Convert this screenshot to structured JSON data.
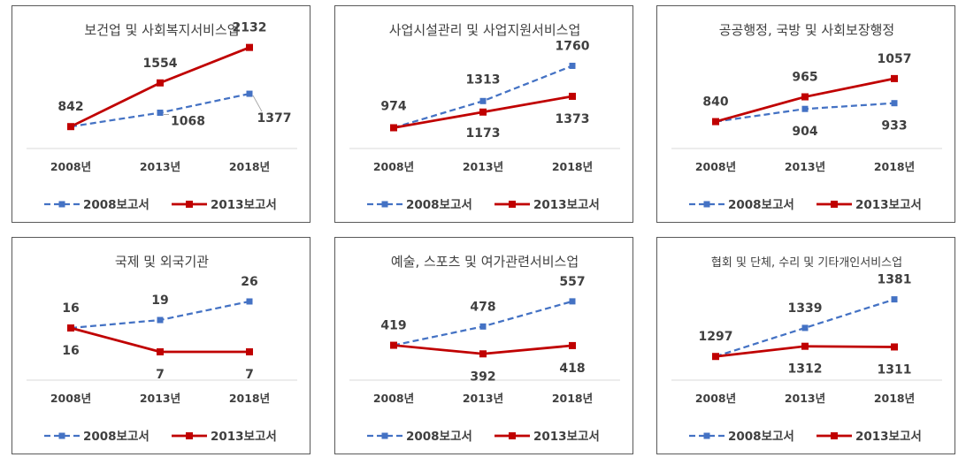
{
  "chart_data": [
    {
      "type": "line",
      "title": "보건업 및 사회복지서비스업",
      "categories": [
        "2008년",
        "2013년",
        "2018년"
      ],
      "series": [
        {
          "name": "2008보고서",
          "color": "#4472C4",
          "style": "dashed",
          "values": [
            842,
            1068,
            1377
          ]
        },
        {
          "name": "2013보고서",
          "color": "#C00000",
          "style": "solid",
          "values": [
            842,
            1554,
            2132
          ]
        }
      ],
      "point_labels": [
        "842",
        "1554",
        "2132",
        "1068",
        "1377"
      ],
      "ylim": [
        600,
        2300
      ]
    },
    {
      "type": "line",
      "title": "사업시설관리 및 사업지원서비스업",
      "categories": [
        "2008년",
        "2013년",
        "2018년"
      ],
      "series": [
        {
          "name": "2008보고서",
          "color": "#4472C4",
          "style": "dashed",
          "values": [
            974,
            1313,
            1760
          ]
        },
        {
          "name": "2013보고서",
          "color": "#C00000",
          "style": "solid",
          "values": [
            974,
            1173,
            1373
          ]
        }
      ],
      "point_labels": [
        "974",
        "1313",
        "1760",
        "1173",
        "1373"
      ],
      "ylim": [
        800,
        1900
      ]
    },
    {
      "type": "line",
      "title": "공공행정, 국방 및 사회보장행정",
      "categories": [
        "2008년",
        "2013년",
        "2018년"
      ],
      "series": [
        {
          "name": "2008보고서",
          "color": "#4472C4",
          "style": "dashed",
          "values": [
            840,
            904,
            933
          ]
        },
        {
          "name": "2013보고서",
          "color": "#C00000",
          "style": "solid",
          "values": [
            840,
            965,
            1057
          ]
        }
      ],
      "point_labels": [
        "840",
        "965",
        "1057",
        "904",
        "933"
      ],
      "ylim": [
        740,
        1110
      ]
    },
    {
      "type": "line",
      "title": "국제 및 외국기관",
      "categories": [
        "2008년",
        "2013년",
        "2018년"
      ],
      "series": [
        {
          "name": "2008보고서",
          "color": "#4472C4",
          "style": "dashed",
          "values": [
            16,
            19,
            26
          ]
        },
        {
          "name": "2013보고서",
          "color": "#C00000",
          "style": "solid",
          "values": [
            16,
            7,
            7
          ]
        }
      ],
      "point_labels": [
        "16",
        "19",
        "26",
        "16",
        "7",
        "7"
      ],
      "ylim": [
        0,
        30
      ]
    },
    {
      "type": "line",
      "title": "예술, 스포츠 및 여가관련서비스업",
      "categories": [
        "2008년",
        "2013년",
        "2018년"
      ],
      "series": [
        {
          "name": "2008보고서",
          "color": "#4472C4",
          "style": "dashed",
          "values": [
            419,
            478,
            557
          ]
        },
        {
          "name": "2013보고서",
          "color": "#C00000",
          "style": "solid",
          "values": [
            419,
            392,
            418
          ]
        }
      ],
      "point_labels": [
        "419",
        "478",
        "557",
        "392",
        "418"
      ],
      "ylim": [
        340,
        590
      ]
    },
    {
      "type": "line",
      "title": "협회 및 단체, 수리 및 기타개인서비스업",
      "categories": [
        "2008년",
        "2013년",
        "2018년"
      ],
      "series": [
        {
          "name": "2008보고서",
          "color": "#4472C4",
          "style": "dashed",
          "values": [
            1297,
            1339,
            1381
          ]
        },
        {
          "name": "2013보고서",
          "color": "#C00000",
          "style": "solid",
          "values": [
            1297,
            1312,
            1311
          ]
        }
      ],
      "point_labels": [
        "1297",
        "1339",
        "1381",
        "1312",
        "1311"
      ],
      "ylim": [
        1270,
        1400
      ]
    }
  ]
}
